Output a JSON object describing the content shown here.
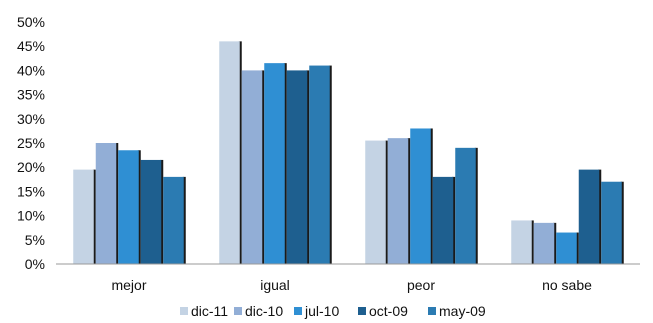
{
  "chart_data": {
    "type": "bar",
    "title": "",
    "xlabel": "",
    "ylabel": "",
    "categories": [
      "mejor",
      "igual",
      "peor",
      "no sabe"
    ],
    "series": [
      {
        "name": "dic-11",
        "color": "#c4d3e4",
        "values": [
          19.5,
          46,
          25.5,
          9
        ]
      },
      {
        "name": "dic-10",
        "color": "#92aed6",
        "values": [
          25,
          40,
          26,
          8.5
        ]
      },
      {
        "name": "jul-10",
        "color": "#2f8fd3",
        "values": [
          23.5,
          41.5,
          28,
          6.5
        ]
      },
      {
        "name": "oct-09",
        "color": "#1e5f8f",
        "values": [
          21.5,
          40,
          18,
          19.5
        ]
      },
      {
        "name": "may-09",
        "color": "#2b7bb2",
        "values": [
          18,
          41,
          24,
          17
        ]
      }
    ],
    "ylim": [
      0,
      50
    ],
    "y_ticks": [
      "0%",
      "5%",
      "10%",
      "15%",
      "20%",
      "25%",
      "30%",
      "35%",
      "40%",
      "45%",
      "50%"
    ],
    "grid": false,
    "legend_position": "bottom"
  }
}
